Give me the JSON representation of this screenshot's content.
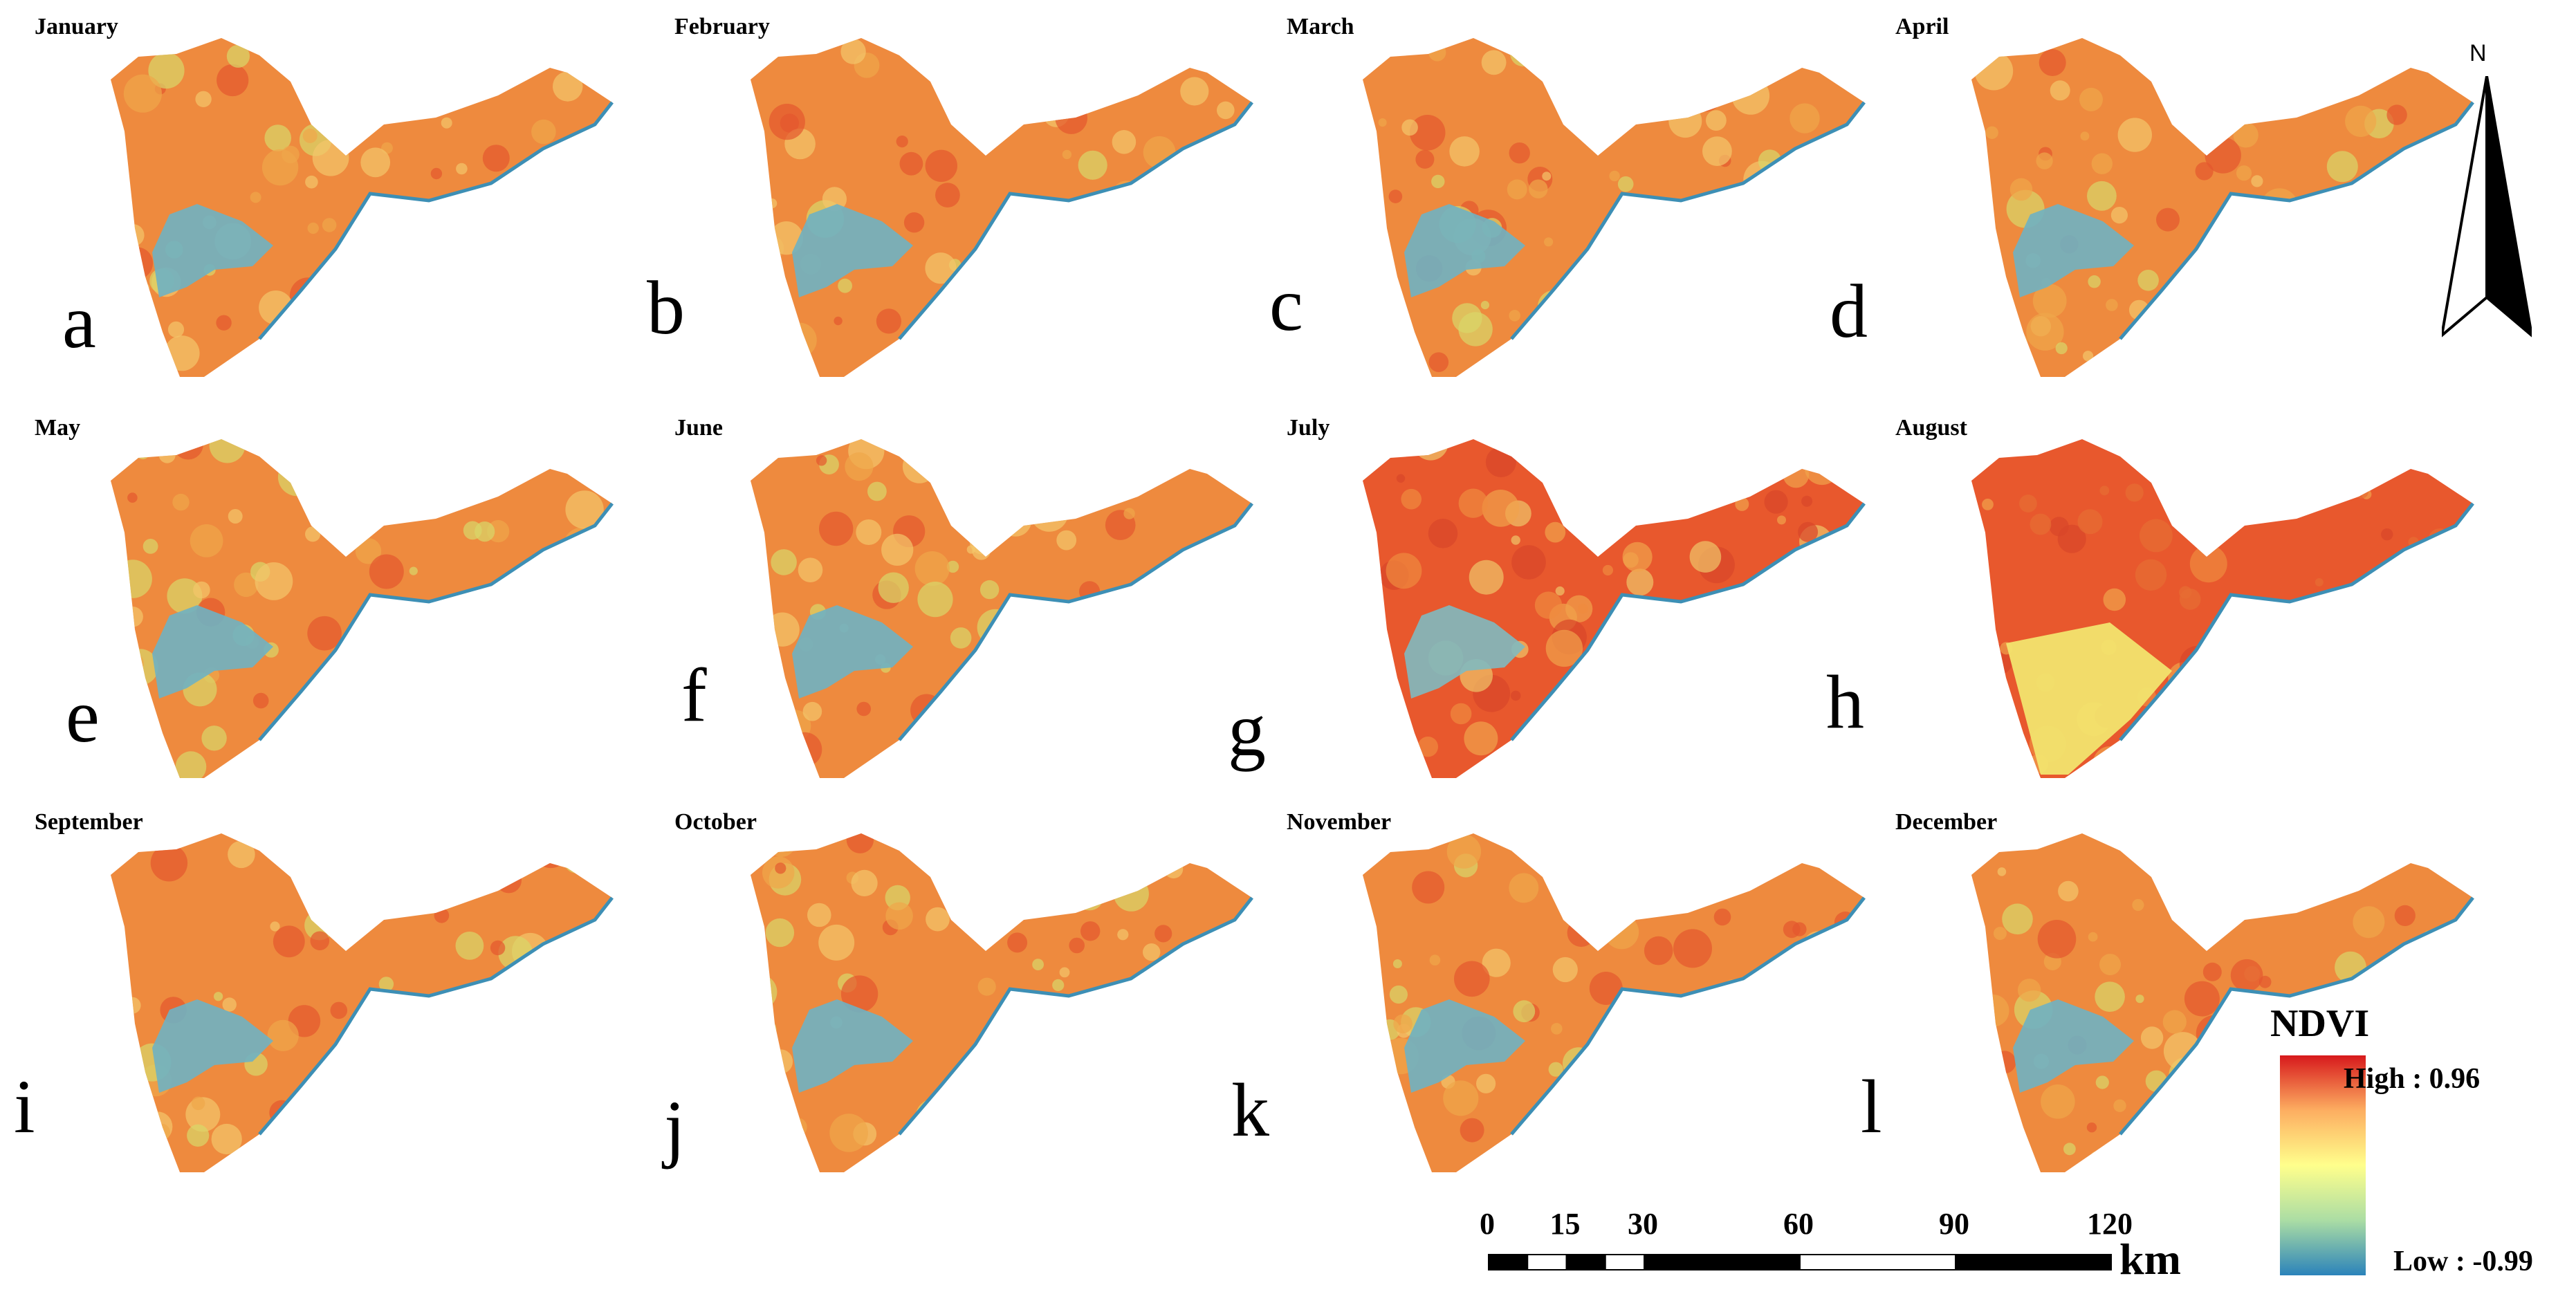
{
  "panels": [
    {
      "title": "January",
      "letter": "a",
      "style": "mixed"
    },
    {
      "title": "February",
      "letter": "b",
      "style": "mixed"
    },
    {
      "title": "March",
      "letter": "c",
      "style": "mixed"
    },
    {
      "title": "April",
      "letter": "d",
      "style": "mixed"
    },
    {
      "title": "May",
      "letter": "e",
      "style": "mixed"
    },
    {
      "title": "June",
      "letter": "f",
      "style": "mixed"
    },
    {
      "title": "July",
      "letter": "g",
      "style": "high"
    },
    {
      "title": "August",
      "letter": "h",
      "style": "august"
    },
    {
      "title": "September",
      "letter": "i",
      "style": "mixed"
    },
    {
      "title": "October",
      "letter": "j",
      "style": "mixed"
    },
    {
      "title": "November",
      "letter": "k",
      "style": "mixed"
    },
    {
      "title": "December",
      "letter": "l",
      "style": "mixed"
    }
  ],
  "north_arrow": {
    "label": "N",
    "icon": "north-arrow-icon"
  },
  "legend": {
    "title": "NDVI",
    "high_label": "High : 0.96",
    "low_label": "Low : -0.99",
    "colors": [
      "#d7191c",
      "#fdae61",
      "#ffff8c",
      "#abdda4",
      "#2b83ba"
    ]
  },
  "scale_bar": {
    "ticks": [
      0,
      15,
      30,
      60,
      90,
      120
    ],
    "unit": "km"
  }
}
